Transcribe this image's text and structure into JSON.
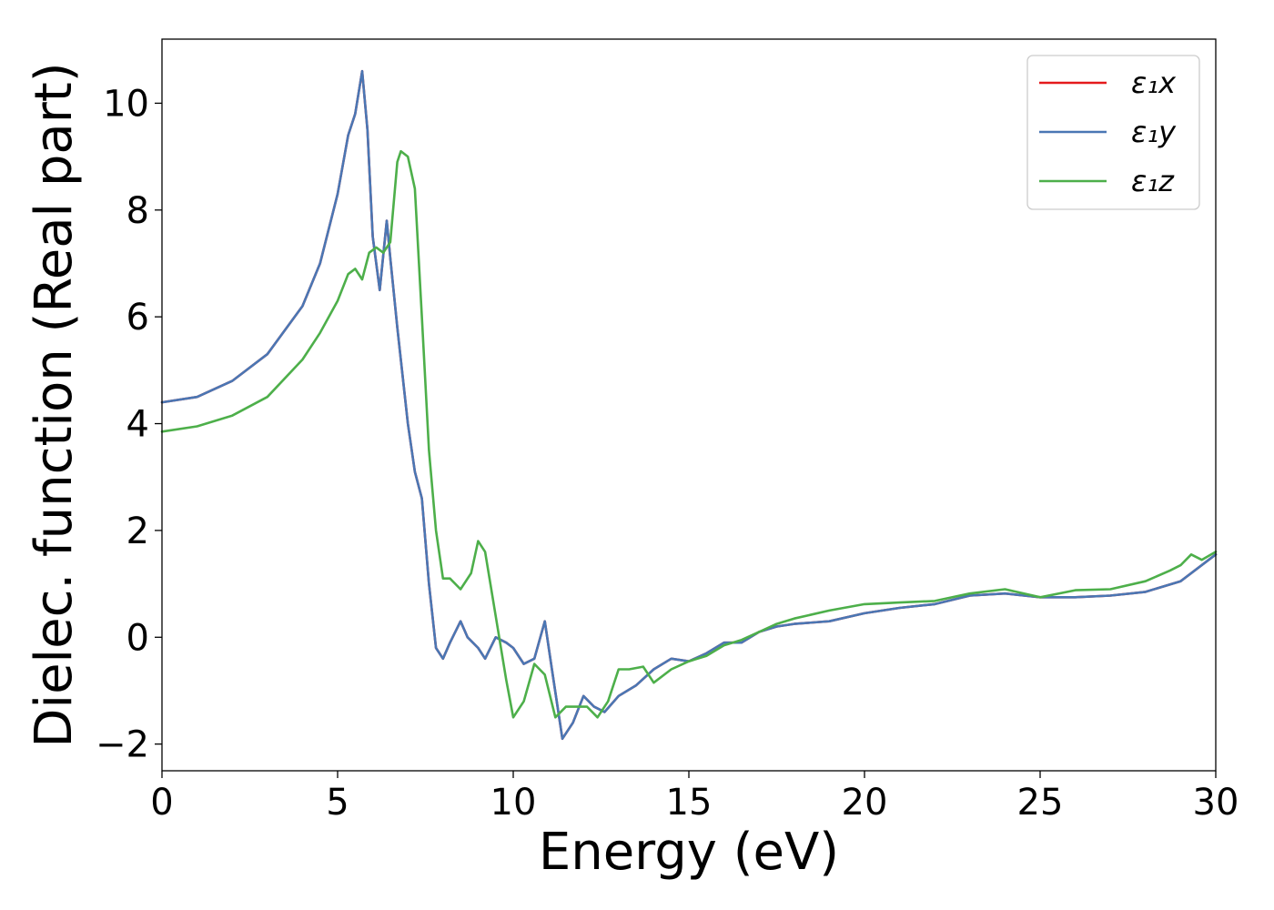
{
  "chart_data": {
    "type": "line",
    "xlabel": "Energy (eV)",
    "ylabel": "Dielec. function (Real part)",
    "xlim": [
      0,
      30
    ],
    "ylim": [
      -2.5,
      11.2
    ],
    "xticks": [
      0,
      5,
      10,
      15,
      20,
      25,
      30
    ],
    "xtick_labels": [
      "0",
      "5",
      "10",
      "15",
      "20",
      "25",
      "30"
    ],
    "yticks": [
      -2,
      0,
      2,
      4,
      6,
      8,
      10
    ],
    "ytick_labels": [
      "−2",
      "0",
      "2",
      "4",
      "6",
      "8",
      "10"
    ],
    "grid": false,
    "legend_position": "top-right",
    "series": [
      {
        "name": "ε₁x",
        "color": "#e41a1c",
        "x": [
          0,
          1,
          2,
          3,
          4,
          4.5,
          5,
          5.3,
          5.5,
          5.7,
          5.85,
          6.0,
          6.2,
          6.4,
          6.5,
          6.7,
          7.0,
          7.2,
          7.4,
          7.6,
          7.8,
          8.0,
          8.2,
          8.5,
          8.7,
          9.0,
          9.2,
          9.5,
          9.8,
          10.0,
          10.3,
          10.6,
          10.9,
          11.1,
          11.4,
          11.7,
          12.0,
          12.3,
          12.6,
          13.0,
          13.5,
          14.0,
          14.5,
          15.0,
          15.5,
          16.0,
          16.5,
          17.0,
          17.5,
          18.0,
          19.0,
          20.0,
          21.0,
          22.0,
          23.0,
          24.0,
          25.0,
          26.0,
          27.0,
          28.0,
          29.0,
          30.0
        ],
        "y": [
          4.4,
          4.5,
          4.8,
          5.3,
          6.2,
          7.0,
          8.3,
          9.4,
          9.8,
          10.6,
          9.5,
          7.5,
          6.5,
          7.8,
          7.1,
          5.8,
          4.0,
          3.1,
          2.6,
          1.0,
          -0.2,
          -0.4,
          -0.1,
          0.3,
          0.0,
          -0.2,
          -0.4,
          0.0,
          -0.1,
          -0.2,
          -0.5,
          -0.4,
          0.3,
          -0.6,
          -1.9,
          -1.6,
          -1.1,
          -1.3,
          -1.4,
          -1.1,
          -0.9,
          -0.6,
          -0.4,
          -0.45,
          -0.3,
          -0.1,
          -0.1,
          0.1,
          0.2,
          0.25,
          0.3,
          0.45,
          0.55,
          0.62,
          0.78,
          0.82,
          0.75,
          0.75,
          0.78,
          0.85,
          1.05,
          1.55
        ]
      },
      {
        "name": "ε₁y",
        "color": "#4a77b4",
        "x": [
          0,
          1,
          2,
          3,
          4,
          4.5,
          5,
          5.3,
          5.5,
          5.7,
          5.85,
          6.0,
          6.2,
          6.4,
          6.5,
          6.7,
          7.0,
          7.2,
          7.4,
          7.6,
          7.8,
          8.0,
          8.2,
          8.5,
          8.7,
          9.0,
          9.2,
          9.5,
          9.8,
          10.0,
          10.3,
          10.6,
          10.9,
          11.1,
          11.4,
          11.7,
          12.0,
          12.3,
          12.6,
          13.0,
          13.5,
          14.0,
          14.5,
          15.0,
          15.5,
          16.0,
          16.5,
          17.0,
          17.5,
          18.0,
          19.0,
          20.0,
          21.0,
          22.0,
          23.0,
          24.0,
          25.0,
          26.0,
          27.0,
          28.0,
          29.0,
          30.0
        ],
        "y": [
          4.4,
          4.5,
          4.8,
          5.3,
          6.2,
          7.0,
          8.3,
          9.4,
          9.8,
          10.6,
          9.5,
          7.5,
          6.5,
          7.8,
          7.1,
          5.8,
          4.0,
          3.1,
          2.6,
          1.0,
          -0.2,
          -0.4,
          -0.1,
          0.3,
          0.0,
          -0.2,
          -0.4,
          0.0,
          -0.1,
          -0.2,
          -0.5,
          -0.4,
          0.3,
          -0.6,
          -1.9,
          -1.6,
          -1.1,
          -1.3,
          -1.4,
          -1.1,
          -0.9,
          -0.6,
          -0.4,
          -0.45,
          -0.3,
          -0.1,
          -0.1,
          0.1,
          0.2,
          0.25,
          0.3,
          0.45,
          0.55,
          0.62,
          0.78,
          0.82,
          0.75,
          0.75,
          0.78,
          0.85,
          1.05,
          1.55
        ]
      },
      {
        "name": "ε₁z",
        "color": "#4daf4a",
        "x": [
          0,
          1,
          2,
          3,
          4,
          4.5,
          5,
          5.3,
          5.5,
          5.7,
          5.9,
          6.1,
          6.3,
          6.5,
          6.7,
          6.8,
          7.0,
          7.2,
          7.4,
          7.6,
          7.8,
          8.0,
          8.2,
          8.5,
          8.8,
          9.0,
          9.2,
          9.5,
          9.8,
          10.0,
          10.3,
          10.6,
          10.9,
          11.2,
          11.5,
          11.8,
          12.1,
          12.4,
          12.7,
          13.0,
          13.3,
          13.7,
          14.0,
          14.5,
          15.0,
          15.5,
          16.0,
          16.5,
          17.0,
          17.5,
          18.0,
          19.0,
          20.0,
          21.0,
          22.0,
          23.0,
          24.0,
          25.0,
          26.0,
          27.0,
          28.0,
          28.7,
          29.0,
          29.3,
          29.6,
          30.0
        ],
        "y": [
          3.85,
          3.95,
          4.15,
          4.5,
          5.2,
          5.7,
          6.3,
          6.8,
          6.9,
          6.7,
          7.2,
          7.3,
          7.2,
          7.4,
          8.9,
          9.1,
          9.0,
          8.4,
          6.0,
          3.5,
          2.0,
          1.1,
          1.1,
          0.9,
          1.2,
          1.8,
          1.6,
          0.4,
          -0.8,
          -1.5,
          -1.2,
          -0.5,
          -0.7,
          -1.5,
          -1.3,
          -1.3,
          -1.3,
          -1.5,
          -1.2,
          -0.6,
          -0.6,
          -0.55,
          -0.85,
          -0.6,
          -0.45,
          -0.35,
          -0.15,
          -0.05,
          0.1,
          0.25,
          0.35,
          0.5,
          0.62,
          0.65,
          0.68,
          0.82,
          0.9,
          0.75,
          0.88,
          0.9,
          1.05,
          1.25,
          1.35,
          1.55,
          1.45,
          1.6
        ]
      }
    ]
  }
}
